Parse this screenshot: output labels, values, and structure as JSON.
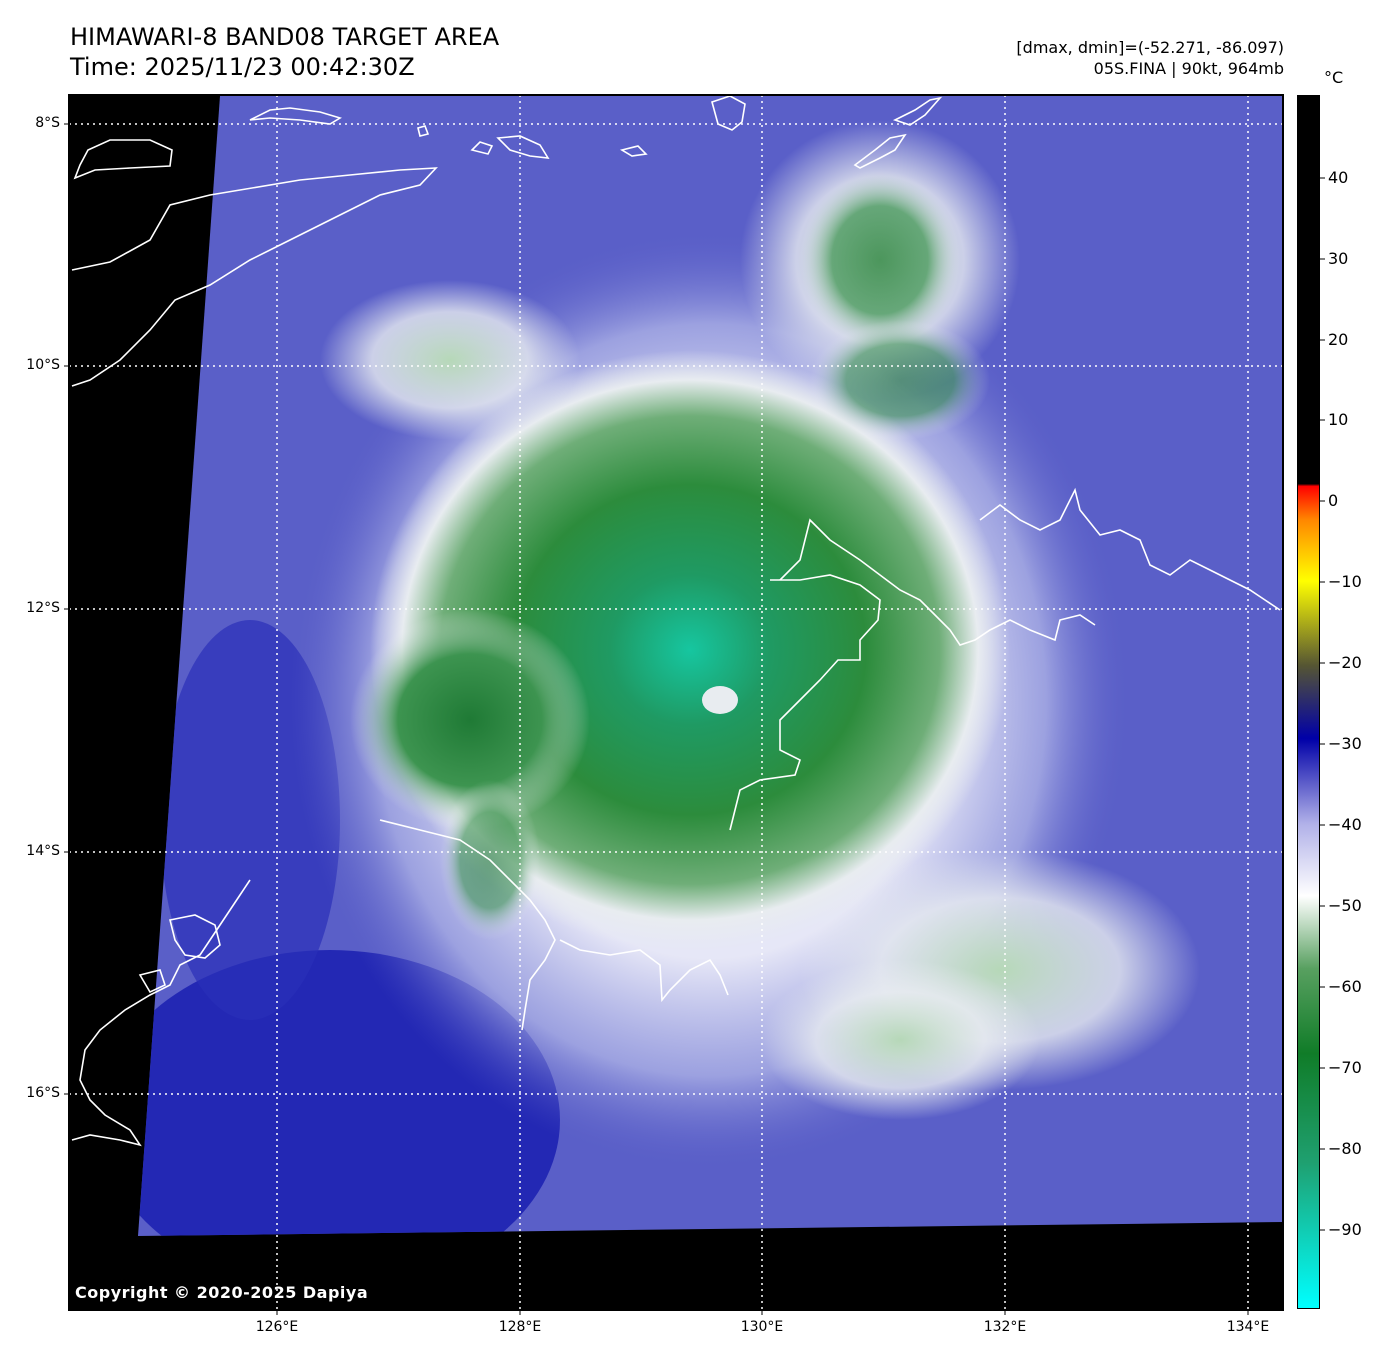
{
  "header": {
    "title_line1": "HIMAWARI-8 BAND08 TARGET AREA",
    "title_line2": "Time: 2025/11/23 00:42:30Z",
    "meta_line1": "[dmax, dmin]=(-52.271, -86.097)",
    "meta_line2": "05S.FINA | 90kt, 964mb"
  },
  "colorbar": {
    "unit": "°C",
    "ticks": [
      "40",
      "30",
      "20",
      "10",
      "0",
      "−10",
      "−20",
      "−30",
      "−40",
      "−50",
      "−60",
      "−70",
      "−80",
      "−90"
    ],
    "range": [
      -100,
      50
    ]
  },
  "axes": {
    "lat_labels": [
      "8°S",
      "10°S",
      "12°S",
      "14°S",
      "16°S"
    ],
    "lon_labels": [
      "126°E",
      "128°E",
      "130°E",
      "132°E",
      "134°E"
    ]
  },
  "colors": {
    "background_space": "#000000",
    "warm_ocean": "#5a5fc8",
    "deep_blue": "#1a1eb0",
    "cloud_white": "#e8ecf0",
    "cold_green": "#2c8c3c",
    "coldest_cyan": "#16c6a0",
    "coastline": "#ffffff"
  },
  "copyright": "Copyright © 2020-2025 Dapiya"
}
